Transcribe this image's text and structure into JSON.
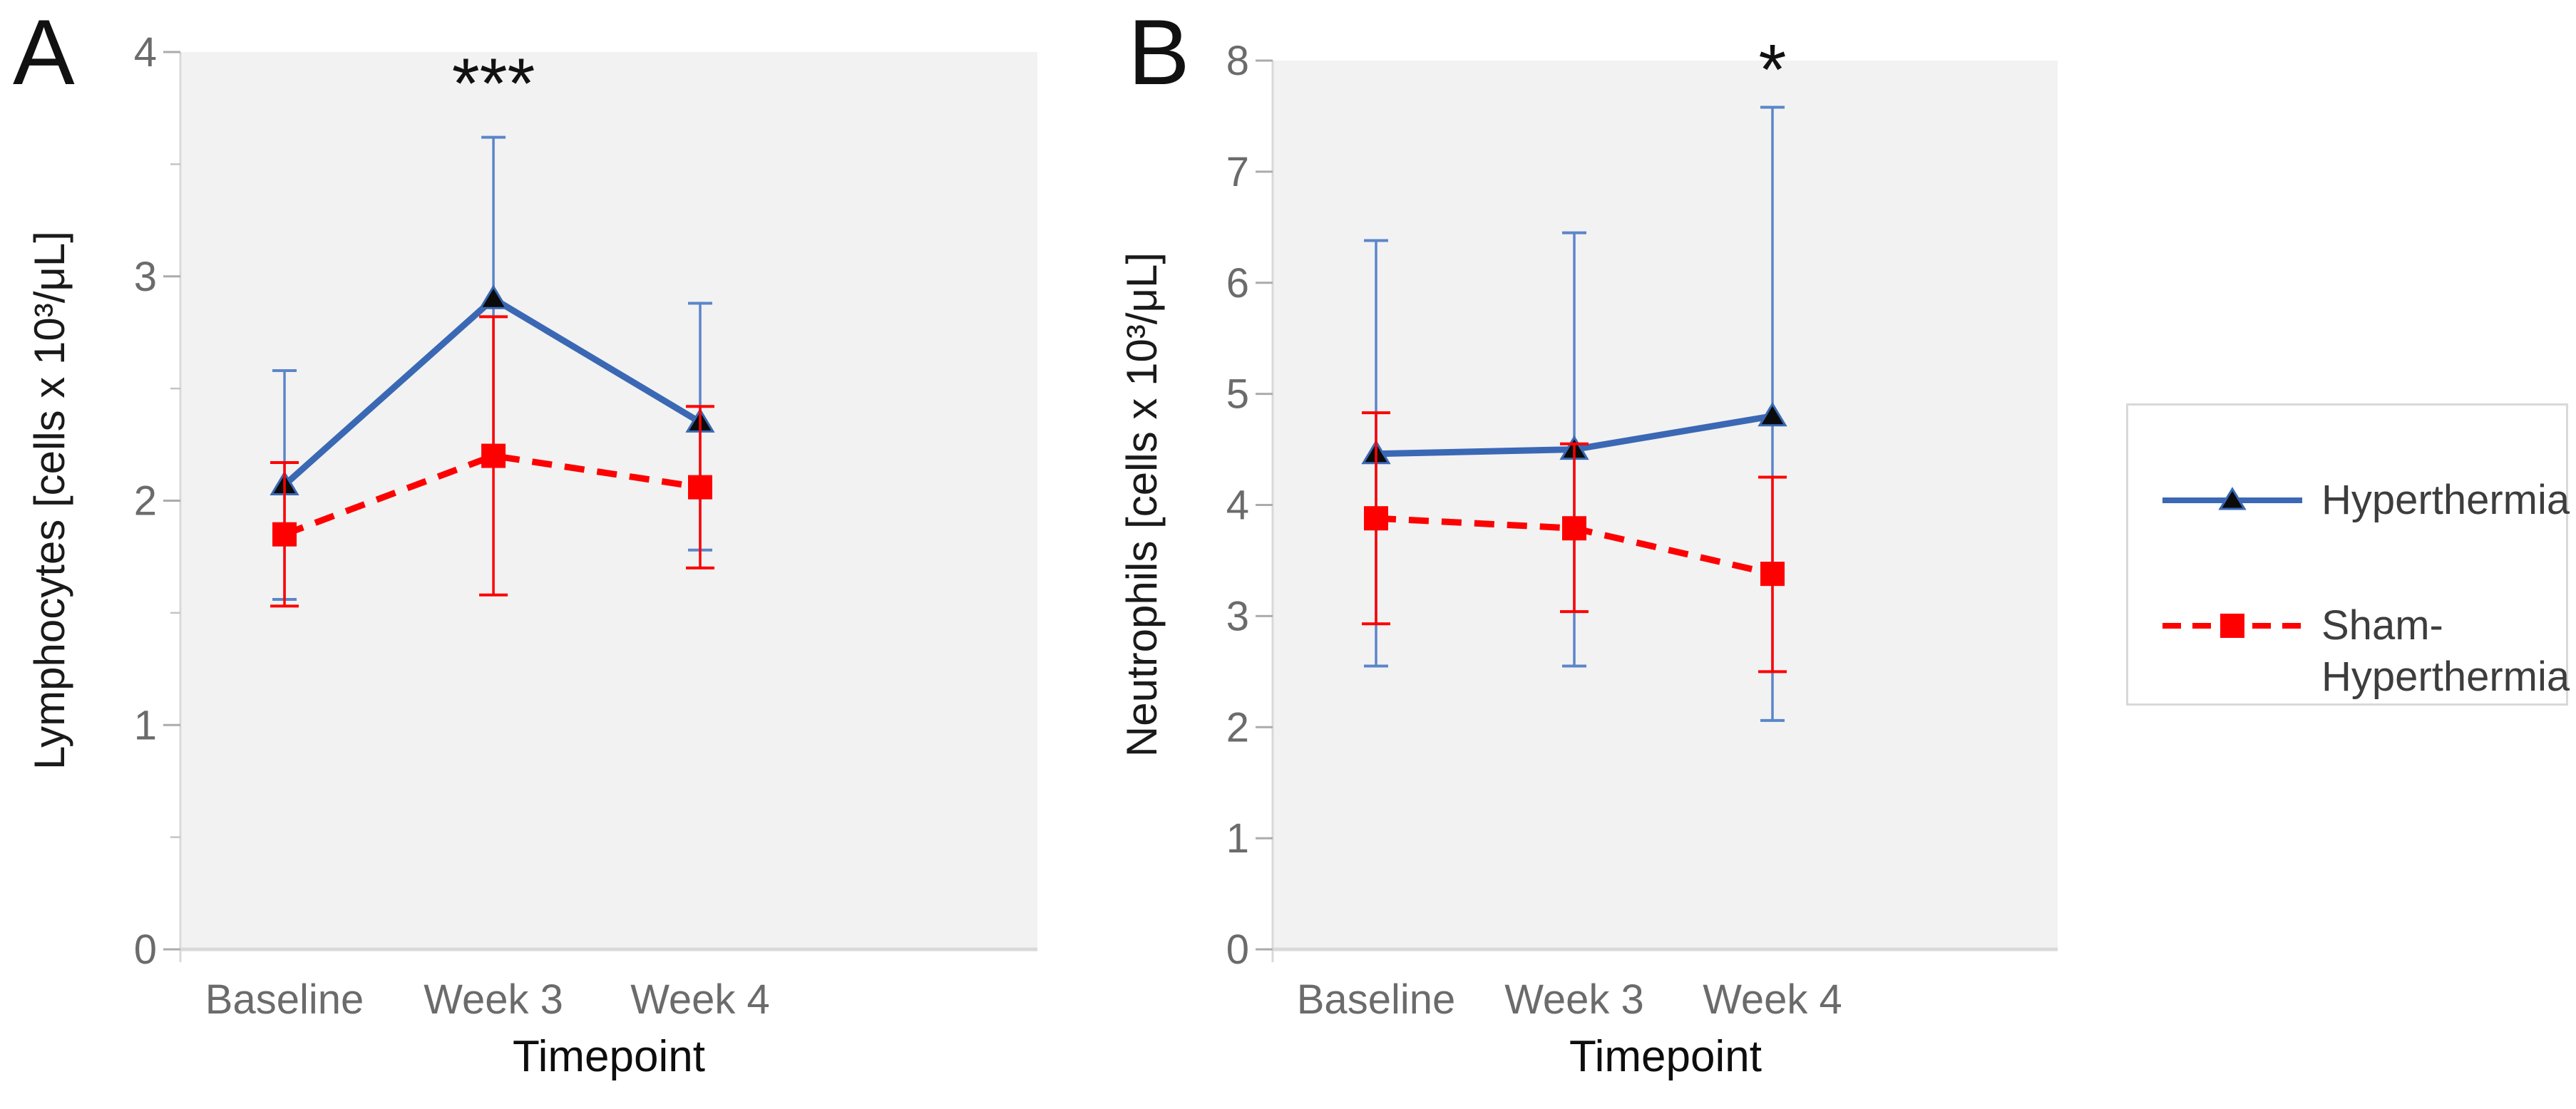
{
  "colors": {
    "hyperthermia_line": "#3A68B4",
    "hyperthermia_error": "#5C85CA",
    "hyperthermia_marker": "#0B0B0B",
    "sham_line": "#FF0000",
    "sham_error": "#FF0000",
    "sham_marker": "#FF0000",
    "plot_background": "#F2F2F2",
    "axis_line": "#D9D9D9",
    "tick_mark": "#ABABAB",
    "minor_tick_mark": "#C4C4C4",
    "tick_label": "#6B6B6B",
    "axis_title": "#111111",
    "significance": "#111111",
    "legend_text": "#3D3D3D",
    "legend_border": "#D9D9D9"
  },
  "chart_data": [
    {
      "type": "line",
      "panel_label": "A",
      "title": "",
      "xlabel": "Timepoint",
      "ylabel": "Lymphocytes [cells x 10³/μL]",
      "categories": [
        "Baseline",
        "Week 3",
        "Week 4"
      ],
      "ylim": [
        0,
        4
      ],
      "y_major_step": 1,
      "y_minor_step": 0.5,
      "y_tick_labels": [
        "0",
        "1",
        "2",
        "3",
        "4"
      ],
      "grid": "off",
      "legend_position": "right-of-figure",
      "series": [
        {
          "name": "Hyperthermia",
          "line_style": "solid",
          "marker": "triangle",
          "values": [
            2.07,
            2.9,
            2.35
          ],
          "error_low": [
            1.56,
            2.18,
            1.78
          ],
          "error_high": [
            2.58,
            3.62,
            2.88
          ]
        },
        {
          "name": "Sham-Hyperthermia",
          "line_style": "dashed",
          "marker": "square",
          "values": [
            1.85,
            2.2,
            2.06
          ],
          "error_low": [
            1.53,
            1.58,
            1.7
          ],
          "error_high": [
            2.17,
            2.82,
            2.42
          ]
        }
      ],
      "annotations": [
        {
          "text": "***",
          "category_index": 1,
          "y_value": 3.75
        }
      ]
    },
    {
      "type": "line",
      "panel_label": "B",
      "title": "",
      "xlabel": "Timepoint",
      "ylabel": "Neutrophils [cells x 10³/μL]",
      "categories": [
        "Baseline",
        "Week 3",
        "Week 4"
      ],
      "ylim": [
        0,
        8
      ],
      "y_major_step": 1,
      "y_minor_step": null,
      "y_tick_labels": [
        "0",
        "1",
        "2",
        "3",
        "4",
        "5",
        "6",
        "7",
        "8"
      ],
      "grid": "off",
      "legend_position": "right-of-figure",
      "series": [
        {
          "name": "Hyperthermia",
          "line_style": "solid",
          "marker": "triangle",
          "values": [
            4.46,
            4.5,
            4.8
          ],
          "error_low": [
            2.55,
            2.55,
            2.06
          ],
          "error_high": [
            6.38,
            6.45,
            7.58
          ]
        },
        {
          "name": "Sham-Hyperthermia",
          "line_style": "dashed",
          "marker": "square",
          "values": [
            3.88,
            3.79,
            3.38
          ],
          "error_low": [
            2.93,
            3.04,
            2.5
          ],
          "error_high": [
            4.83,
            4.55,
            4.25
          ]
        }
      ],
      "annotations": [
        {
          "text": "*",
          "category_index": 2,
          "y_value": 7.7
        }
      ]
    }
  ],
  "legend": {
    "entries": [
      {
        "label": "Hyperthermia",
        "series_index": 0
      },
      {
        "label": "Sham-\nHyperthermia",
        "series_index": 1
      }
    ]
  }
}
